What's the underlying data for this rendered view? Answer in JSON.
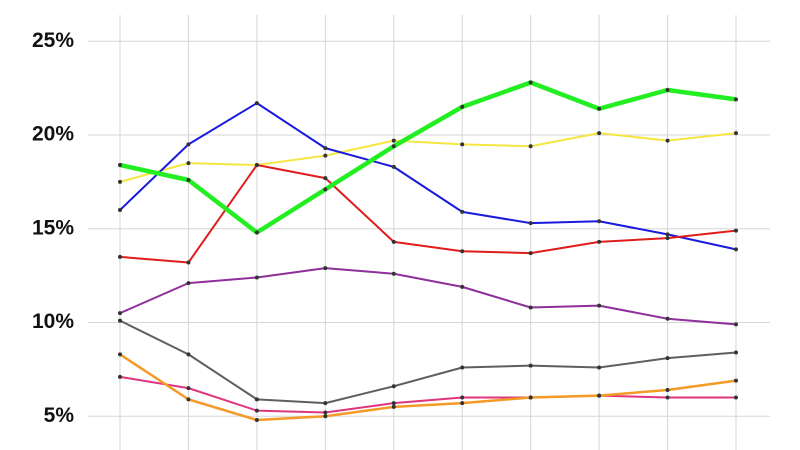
{
  "chart_data": {
    "type": "line",
    "categories": [
      null,
      null,
      null,
      null,
      null,
      null,
      null,
      null,
      null,
      null
    ],
    "ylim": [
      3.2,
      26.4
    ],
    "yticks": [
      {
        "value": 5,
        "label": "5%"
      },
      {
        "value": 10,
        "label": "10%"
      },
      {
        "value": 15,
        "label": "15%"
      },
      {
        "value": 20,
        "label": "20%"
      },
      {
        "value": 25,
        "label": "25%"
      }
    ],
    "grid": true,
    "series": [
      {
        "color": "#f5e642",
        "width": 2,
        "values": [
          17.5,
          18.5,
          18.4,
          18.9,
          19.7,
          19.5,
          19.4,
          20.1,
          19.7,
          20.1
        ]
      },
      {
        "color": "#1a1adf",
        "width": 2,
        "values": [
          16.0,
          19.5,
          21.7,
          19.3,
          18.3,
          15.9,
          15.3,
          15.4,
          14.7,
          13.9
        ]
      },
      {
        "color": "#e01c1c",
        "width": 2,
        "values": [
          13.5,
          13.2,
          18.4,
          17.7,
          14.3,
          13.8,
          13.7,
          14.3,
          14.5,
          14.9
        ]
      },
      {
        "color": "#8e2f9a",
        "width": 2,
        "values": [
          10.5,
          12.1,
          12.4,
          12.9,
          12.6,
          11.9,
          10.8,
          10.9,
          10.2,
          9.9
        ]
      },
      {
        "color": "#5f5f5f",
        "width": 2,
        "values": [
          10.1,
          8.3,
          5.9,
          5.7,
          6.6,
          7.6,
          7.7,
          7.6,
          8.1,
          8.4
        ]
      },
      {
        "color": "#e0357e",
        "width": 2,
        "values": [
          7.1,
          6.5,
          5.3,
          5.2,
          5.7,
          6.0,
          6.0,
          6.1,
          6.0,
          6.0
        ]
      },
      {
        "color": "#f39a27",
        "width": 2.5,
        "values": [
          8.3,
          5.9,
          4.8,
          5.0,
          5.5,
          5.7,
          6.0,
          6.1,
          6.4,
          6.9
        ]
      },
      {
        "color": "#22ee22",
        "width": 4.5,
        "values": [
          18.4,
          17.6,
          14.8,
          17.1,
          19.4,
          21.5,
          22.8,
          21.4,
          22.4,
          21.9
        ]
      }
    ]
  }
}
